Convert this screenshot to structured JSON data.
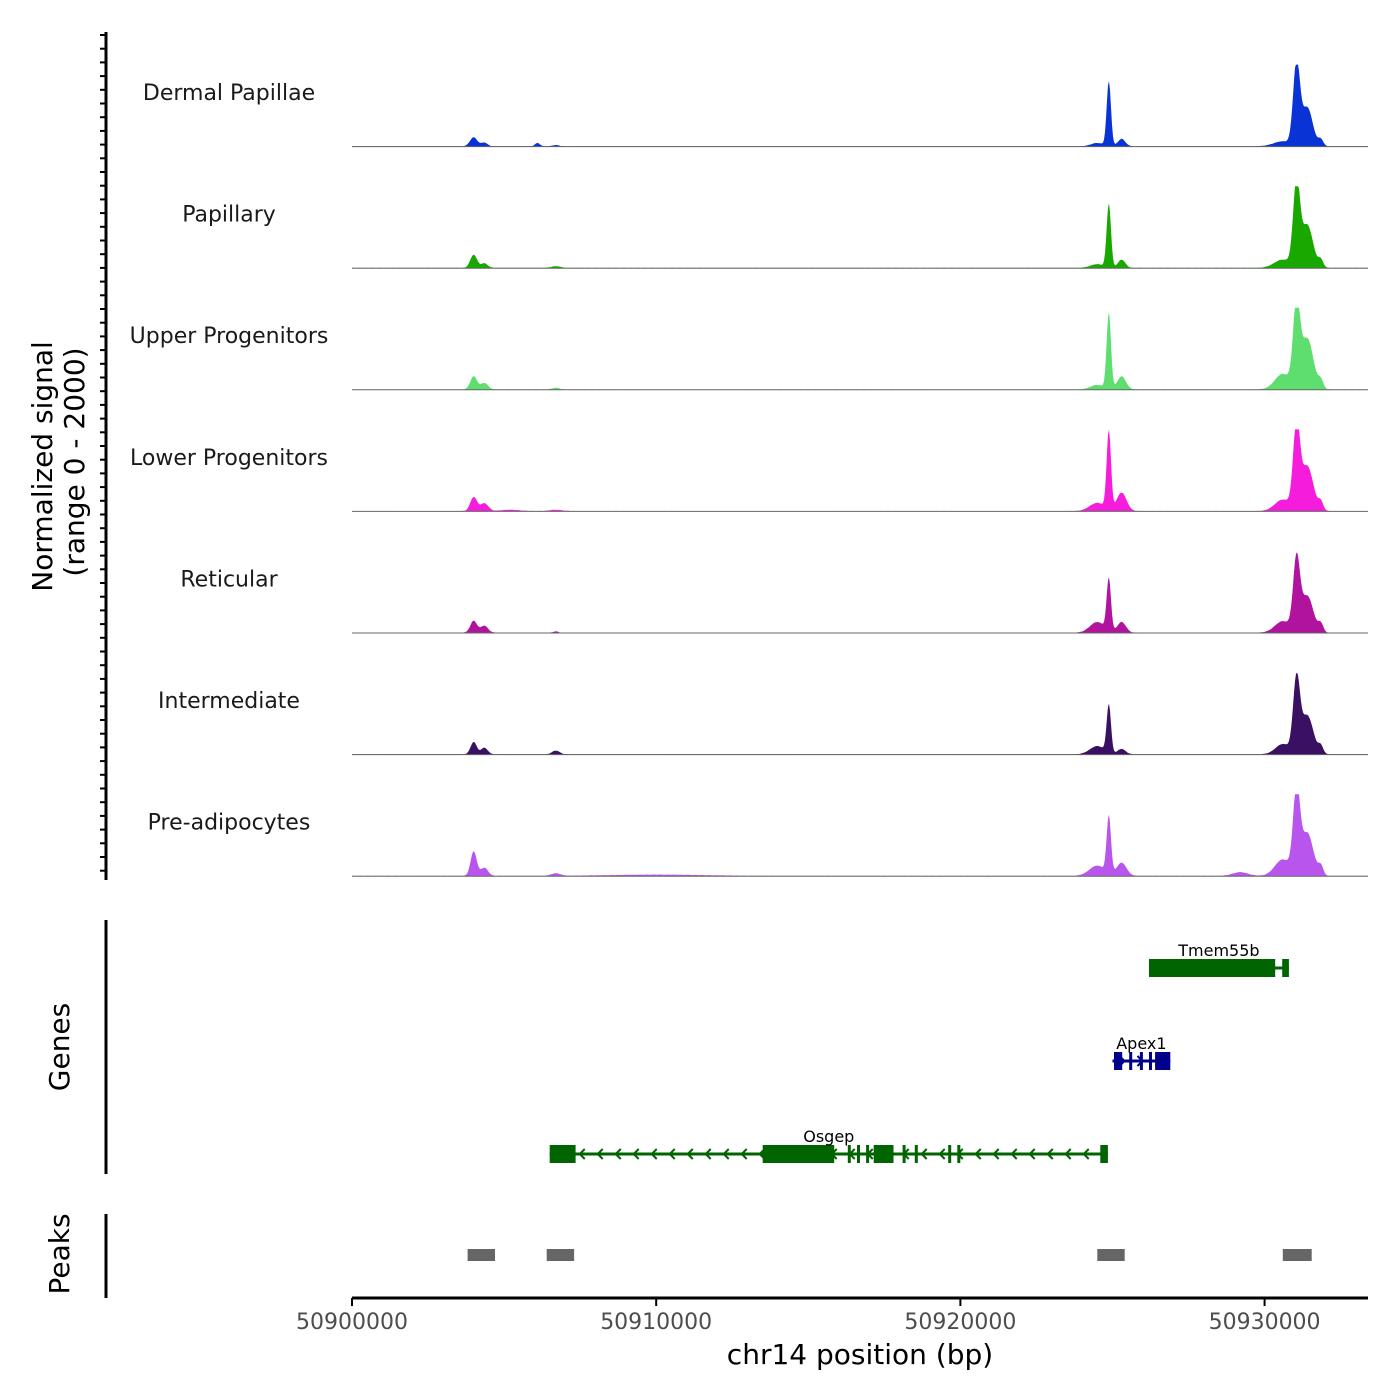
{
  "chart_data": {
    "type": "area",
    "title": "",
    "chromosome": "chr14",
    "xlabel": "chr14 position (bp)",
    "ylabel_line1": "Normalized signal",
    "ylabel_line2": "(range 0 - 2000)",
    "xlim": [
      50900000,
      50933400
    ],
    "ylim": [
      0,
      2000
    ],
    "x_ticks": [
      50900000,
      50910000,
      50920000,
      50930000
    ],
    "x_tick_labels": [
      "50900000",
      "50910000",
      "50920000",
      "50930000"
    ],
    "tracks": [
      {
        "name": "Dermal Papillae",
        "color": "#0a33d6",
        "peaks": [
          [
            50904000,
            220,
            120
          ],
          [
            50904350,
            90,
            100
          ],
          [
            50906100,
            80,
            80
          ],
          [
            50906700,
            30,
            100
          ],
          [
            50924500,
            80,
            200
          ],
          [
            50924880,
            1580,
            70
          ],
          [
            50925300,
            180,
            120
          ],
          [
            50931050,
            1980,
            110
          ],
          [
            50931400,
            950,
            180
          ],
          [
            50930600,
            120,
            300
          ],
          [
            50931850,
            160,
            80
          ]
        ]
      },
      {
        "name": "Papillary",
        "color": "#18a800",
        "peaks": [
          [
            50904000,
            320,
            110
          ],
          [
            50904350,
            110,
            110
          ],
          [
            50906700,
            40,
            150
          ],
          [
            50924500,
            90,
            220
          ],
          [
            50924880,
            1560,
            70
          ],
          [
            50925300,
            200,
            120
          ],
          [
            50931050,
            2000,
            110
          ],
          [
            50931400,
            1050,
            190
          ],
          [
            50930600,
            200,
            280
          ],
          [
            50931850,
            180,
            80
          ]
        ]
      },
      {
        "name": "Upper Progenitors",
        "color": "#5ede6e",
        "peaks": [
          [
            50904000,
            320,
            110
          ],
          [
            50904350,
            160,
            120
          ],
          [
            50906700,
            40,
            120
          ],
          [
            50924500,
            110,
            220
          ],
          [
            50924880,
            1860,
            70
          ],
          [
            50925300,
            320,
            140
          ],
          [
            50931050,
            2000,
            110
          ],
          [
            50931400,
            1250,
            200
          ],
          [
            50930600,
            380,
            260
          ],
          [
            50931850,
            200,
            80
          ]
        ]
      },
      {
        "name": "Lower Progenitors",
        "color": "#f51cdb",
        "peaks": [
          [
            50904000,
            340,
            110
          ],
          [
            50904350,
            190,
            130
          ],
          [
            50905200,
            30,
            300
          ],
          [
            50906700,
            30,
            200
          ],
          [
            50924500,
            200,
            250
          ],
          [
            50924880,
            1920,
            70
          ],
          [
            50925300,
            450,
            160
          ],
          [
            50931050,
            2000,
            110
          ],
          [
            50931400,
            1100,
            200
          ],
          [
            50930600,
            280,
            260
          ],
          [
            50931850,
            200,
            80
          ]
        ]
      },
      {
        "name": "Reticular",
        "color": "#b0149e",
        "peaks": [
          [
            50904000,
            290,
            110
          ],
          [
            50904350,
            170,
            120
          ],
          [
            50906700,
            30,
            80
          ],
          [
            50924500,
            260,
            240
          ],
          [
            50924880,
            1280,
            70
          ],
          [
            50925300,
            260,
            140
          ],
          [
            50931050,
            1700,
            110
          ],
          [
            50931400,
            900,
            200
          ],
          [
            50930600,
            280,
            260
          ],
          [
            50931850,
            200,
            80
          ]
        ]
      },
      {
        "name": "Intermediate",
        "color": "#3a1062",
        "peaks": [
          [
            50904000,
            300,
            100
          ],
          [
            50904350,
            160,
            110
          ],
          [
            50906700,
            90,
            120
          ],
          [
            50924500,
            200,
            240
          ],
          [
            50924880,
            1180,
            70
          ],
          [
            50925300,
            130,
            130
          ],
          [
            50931050,
            1760,
            110
          ],
          [
            50931400,
            950,
            200
          ],
          [
            50930600,
            250,
            240
          ],
          [
            50931850,
            180,
            80
          ]
        ]
      },
      {
        "name": "Pre-adipocytes",
        "color": "#b855ec",
        "peaks": [
          [
            50904000,
            600,
            100
          ],
          [
            50904350,
            200,
            120
          ],
          [
            50906700,
            60,
            150
          ],
          [
            50910000,
            30,
            1500
          ],
          [
            50924500,
            250,
            260
          ],
          [
            50924880,
            1400,
            70
          ],
          [
            50925300,
            320,
            160
          ],
          [
            50929200,
            90,
            250
          ],
          [
            50931050,
            2000,
            110
          ],
          [
            50931400,
            1050,
            200
          ],
          [
            50930600,
            400,
            260
          ],
          [
            50931850,
            220,
            80
          ]
        ]
      }
    ],
    "genes_title": "Genes",
    "genes": [
      {
        "name": "Tmem55b",
        "strand": "-",
        "color": "#006400",
        "start": 50926200,
        "end": 50930800,
        "exons": [
          [
            50926200,
            50930350
          ],
          [
            50930580,
            50930800
          ]
        ]
      },
      {
        "name": "Apex1",
        "strand": "+",
        "color": "#00008b",
        "start": 50925000,
        "end": 50926900,
        "exons": [
          [
            50925050,
            50925320
          ],
          [
            50925550,
            50925650
          ],
          [
            50925900,
            50926000
          ],
          [
            50926200,
            50926300
          ],
          [
            50926400,
            50926900
          ]
        ]
      },
      {
        "name": "Osgep",
        "strand": "-",
        "color": "#006400",
        "start": 50906500,
        "end": 50924850,
        "exons": [
          [
            50906500,
            50907350
          ],
          [
            50913500,
            50915850
          ],
          [
            50916300,
            50916380
          ],
          [
            50916600,
            50916700
          ],
          [
            50916900,
            50917000
          ],
          [
            50917150,
            50917800
          ],
          [
            50918100,
            50918200
          ],
          [
            50918500,
            50918550
          ],
          [
            50919600,
            50919700
          ],
          [
            50919900,
            50920000
          ],
          [
            50924600,
            50924850
          ]
        ]
      }
    ],
    "peaks_title": "Peaks",
    "peak_regions": [
      [
        50903800,
        50904700
      ],
      [
        50906400,
        50907300
      ],
      [
        50924500,
        50925400
      ],
      [
        50930600,
        50931550
      ]
    ],
    "peak_color": "#666666"
  }
}
